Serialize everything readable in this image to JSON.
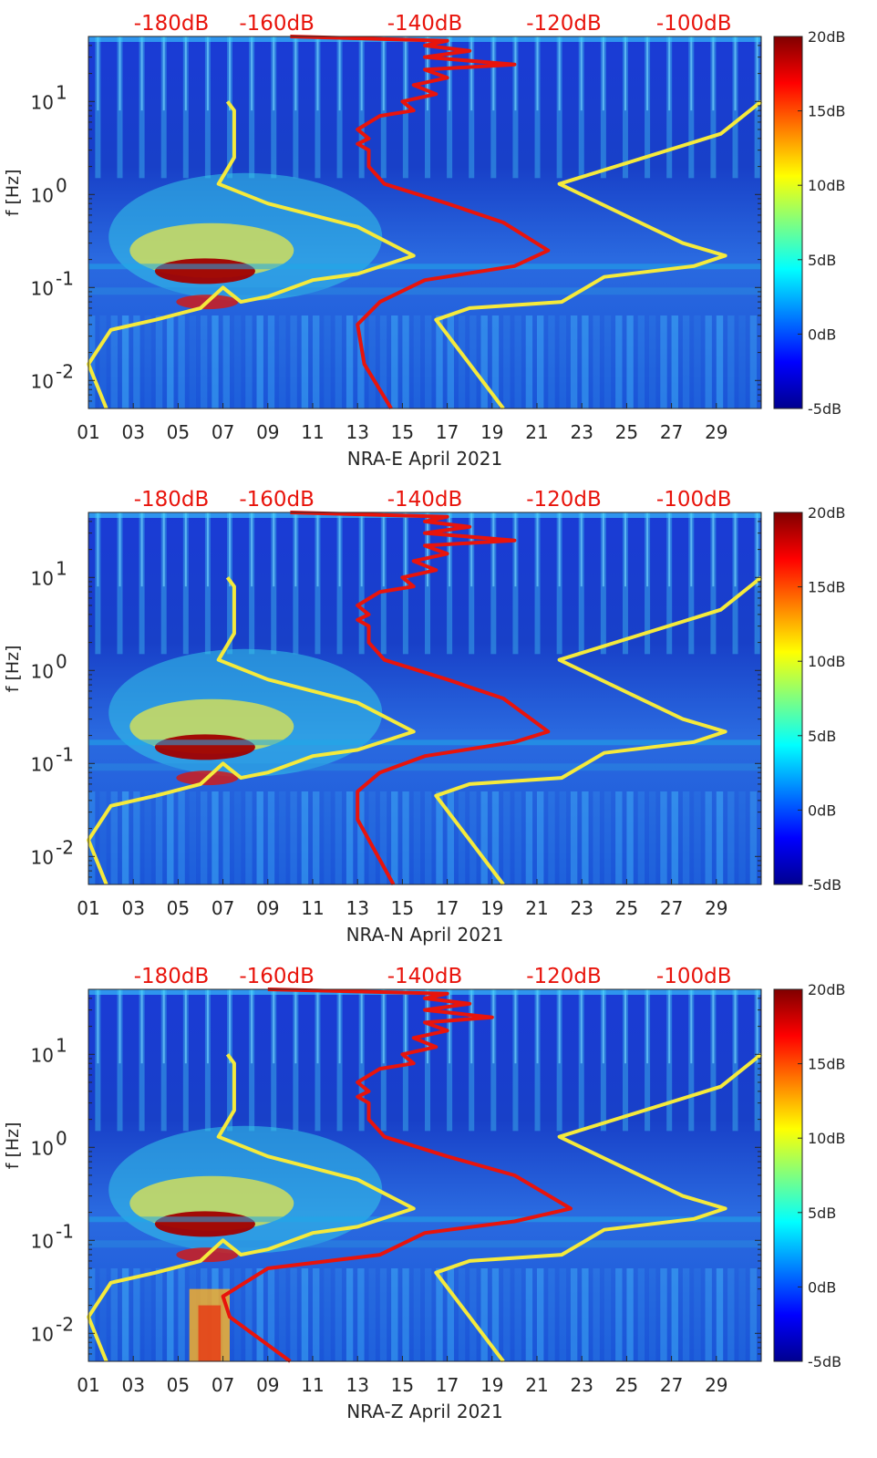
{
  "chart_data": [
    {
      "type": "heatmap",
      "xlabel": "NRA-E April 2021",
      "ylabel": "f [Hz]",
      "x_tick_labels": [
        "01",
        "03",
        "05",
        "07",
        "09",
        "11",
        "13",
        "15",
        "17",
        "19",
        "21",
        "23",
        "25",
        "27",
        "29"
      ],
      "x_ticks": [
        1,
        3,
        5,
        7,
        9,
        11,
        13,
        15,
        17,
        19,
        21,
        23,
        25,
        27,
        29
      ],
      "xlim": [
        1,
        31
      ],
      "y_scale": "log",
      "ylim": [
        0.005,
        50
      ],
      "y_ticks": [
        0.01,
        0.1,
        1,
        10
      ],
      "y_tick_labels": [
        [
          "10",
          "-2"
        ],
        [
          "10",
          "-1"
        ],
        [
          "10",
          "0"
        ],
        [
          "10",
          "1"
        ]
      ],
      "top_axis_labels": [
        "-180dB",
        "-160dB",
        "-140dB",
        "-120dB",
        "-100dB"
      ],
      "top_axis_days": [
        4.7,
        9.4,
        16.0,
        22.2,
        28.0
      ],
      "colorbar": {
        "labels": [
          "20dB",
          "15dB",
          "10dB",
          "5dB",
          "0dB",
          "-5dB"
        ],
        "range": [
          -5,
          20
        ]
      },
      "colors": {
        "model_lines": "#f5ea3c",
        "psd_curve": "#e8140c"
      },
      "series": [],
      "yellow_lines": {
        "left": [
          [
            7.2,
            10
          ],
          [
            7.5,
            8
          ],
          [
            7.5,
            2.5
          ],
          [
            6.8,
            1.3
          ],
          [
            9,
            0.8
          ],
          [
            11,
            0.6
          ],
          [
            13,
            0.45
          ],
          [
            15.5,
            0.22
          ],
          [
            13,
            0.14
          ],
          [
            11,
            0.12
          ],
          [
            9,
            0.08
          ],
          [
            7.8,
            0.07
          ],
          [
            7,
            0.1
          ],
          [
            6,
            0.06
          ],
          [
            4,
            0.045
          ],
          [
            2,
            0.035
          ],
          [
            1,
            0.015
          ],
          [
            1.8,
            0.005
          ]
        ],
        "right": [
          [
            31,
            10
          ],
          [
            29.2,
            4.5
          ],
          [
            22,
            1.3
          ],
          [
            27.5,
            0.3
          ],
          [
            29.4,
            0.22
          ],
          [
            28,
            0.17
          ],
          [
            24,
            0.13
          ],
          [
            22.1,
            0.07
          ],
          [
            18,
            0.06
          ],
          [
            16.5,
            0.045
          ],
          [
            19.5,
            0.005
          ]
        ]
      },
      "red_curve": [
        [
          10,
          50
        ],
        [
          17,
          45
        ],
        [
          16,
          40
        ],
        [
          18,
          35
        ],
        [
          16,
          30
        ],
        [
          20,
          25
        ],
        [
          16,
          22
        ],
        [
          17,
          18
        ],
        [
          15.5,
          15
        ],
        [
          16.5,
          12
        ],
        [
          15,
          10
        ],
        [
          15.5,
          8
        ],
        [
          14,
          7
        ],
        [
          13,
          5
        ],
        [
          13.5,
          4
        ],
        [
          13,
          3.5
        ],
        [
          13.5,
          3
        ],
        [
          13.5,
          2
        ],
        [
          14.2,
          1.3
        ],
        [
          17,
          0.8
        ],
        [
          19.5,
          0.5
        ],
        [
          21.5,
          0.25
        ],
        [
          20,
          0.17
        ],
        [
          16,
          0.12
        ],
        [
          14,
          0.07
        ],
        [
          13,
          0.04
        ],
        [
          13.3,
          0.015
        ],
        [
          14.5,
          0.005
        ]
      ]
    },
    {
      "type": "heatmap",
      "xlabel": "NRA-N April 2021",
      "ylabel": "f [Hz]",
      "x_tick_labels": [
        "01",
        "03",
        "05",
        "07",
        "09",
        "11",
        "13",
        "15",
        "17",
        "19",
        "21",
        "23",
        "25",
        "27",
        "29"
      ],
      "x_ticks": [
        1,
        3,
        5,
        7,
        9,
        11,
        13,
        15,
        17,
        19,
        21,
        23,
        25,
        27,
        29
      ],
      "xlim": [
        1,
        31
      ],
      "y_scale": "log",
      "ylim": [
        0.005,
        50
      ],
      "y_ticks": [
        0.01,
        0.1,
        1,
        10
      ],
      "y_tick_labels": [
        [
          "10",
          "-2"
        ],
        [
          "10",
          "-1"
        ],
        [
          "10",
          "0"
        ],
        [
          "10",
          "1"
        ]
      ],
      "top_axis_labels": [
        "-180dB",
        "-160dB",
        "-140dB",
        "-120dB",
        "-100dB"
      ],
      "top_axis_days": [
        4.7,
        9.4,
        16.0,
        22.2,
        28.0
      ],
      "colorbar": {
        "labels": [
          "20dB",
          "15dB",
          "10dB",
          "5dB",
          "0dB",
          "-5dB"
        ],
        "range": [
          -5,
          20
        ]
      },
      "colors": {
        "model_lines": "#f5ea3c",
        "psd_curve": "#e8140c"
      },
      "series": [],
      "yellow_lines": {
        "left": [
          [
            7.2,
            10
          ],
          [
            7.5,
            8
          ],
          [
            7.5,
            2.5
          ],
          [
            6.8,
            1.3
          ],
          [
            9,
            0.8
          ],
          [
            11,
            0.6
          ],
          [
            13,
            0.45
          ],
          [
            15.5,
            0.22
          ],
          [
            13,
            0.14
          ],
          [
            11,
            0.12
          ],
          [
            9,
            0.08
          ],
          [
            7.8,
            0.07
          ],
          [
            7,
            0.1
          ],
          [
            6,
            0.06
          ],
          [
            4,
            0.045
          ],
          [
            2,
            0.035
          ],
          [
            1,
            0.015
          ],
          [
            1.8,
            0.005
          ]
        ],
        "right": [
          [
            31,
            10
          ],
          [
            29.2,
            4.5
          ],
          [
            22,
            1.3
          ],
          [
            27.5,
            0.3
          ],
          [
            29.4,
            0.22
          ],
          [
            28,
            0.17
          ],
          [
            24,
            0.13
          ],
          [
            22.1,
            0.07
          ],
          [
            18,
            0.06
          ],
          [
            16.5,
            0.045
          ],
          [
            19.5,
            0.005
          ]
        ]
      },
      "red_curve": [
        [
          10,
          50
        ],
        [
          17,
          45
        ],
        [
          16,
          40
        ],
        [
          18,
          35
        ],
        [
          16,
          30
        ],
        [
          20,
          25
        ],
        [
          16,
          22
        ],
        [
          17,
          18
        ],
        [
          15.5,
          15
        ],
        [
          16.5,
          12
        ],
        [
          15,
          10
        ],
        [
          15.5,
          8
        ],
        [
          14,
          7
        ],
        [
          13,
          5
        ],
        [
          13.5,
          4
        ],
        [
          13,
          3.5
        ],
        [
          13.5,
          3
        ],
        [
          13.5,
          2
        ],
        [
          14.2,
          1.3
        ],
        [
          17,
          0.8
        ],
        [
          19.5,
          0.5
        ],
        [
          21.5,
          0.22
        ],
        [
          20,
          0.17
        ],
        [
          16,
          0.12
        ],
        [
          14,
          0.08
        ],
        [
          13,
          0.05
        ],
        [
          13,
          0.025
        ],
        [
          14.6,
          0.005
        ]
      ]
    },
    {
      "type": "heatmap",
      "xlabel": "NRA-Z April 2021",
      "ylabel": "f [Hz]",
      "x_tick_labels": [
        "01",
        "03",
        "05",
        "07",
        "09",
        "11",
        "13",
        "15",
        "17",
        "19",
        "21",
        "23",
        "25",
        "27",
        "29"
      ],
      "x_ticks": [
        1,
        3,
        5,
        7,
        9,
        11,
        13,
        15,
        17,
        19,
        21,
        23,
        25,
        27,
        29
      ],
      "xlim": [
        1,
        31
      ],
      "y_scale": "log",
      "ylim": [
        0.005,
        50
      ],
      "y_ticks": [
        0.01,
        0.1,
        1,
        10
      ],
      "y_tick_labels": [
        [
          "10",
          "-2"
        ],
        [
          "10",
          "-1"
        ],
        [
          "10",
          "0"
        ],
        [
          "10",
          "1"
        ]
      ],
      "top_axis_labels": [
        "-180dB",
        "-160dB",
        "-140dB",
        "-120dB",
        "-100dB"
      ],
      "top_axis_days": [
        4.7,
        9.4,
        16.0,
        22.2,
        28.0
      ],
      "colorbar": {
        "labels": [
          "20dB",
          "15dB",
          "10dB",
          "5dB",
          "0dB",
          "-5dB"
        ],
        "range": [
          -5,
          20
        ]
      },
      "colors": {
        "model_lines": "#f5ea3c",
        "psd_curve": "#e8140c"
      },
      "series": [],
      "yellow_lines": {
        "left": [
          [
            7.2,
            10
          ],
          [
            7.5,
            8
          ],
          [
            7.5,
            2.5
          ],
          [
            6.8,
            1.3
          ],
          [
            9,
            0.8
          ],
          [
            11,
            0.6
          ],
          [
            13,
            0.45
          ],
          [
            15.5,
            0.22
          ],
          [
            13,
            0.14
          ],
          [
            11,
            0.12
          ],
          [
            9,
            0.08
          ],
          [
            7.8,
            0.07
          ],
          [
            7,
            0.1
          ],
          [
            6,
            0.06
          ],
          [
            4,
            0.045
          ],
          [
            2,
            0.035
          ],
          [
            1,
            0.015
          ],
          [
            1.8,
            0.005
          ]
        ],
        "right": [
          [
            31,
            10
          ],
          [
            29.2,
            4.5
          ],
          [
            22,
            1.3
          ],
          [
            27.5,
            0.3
          ],
          [
            29.4,
            0.22
          ],
          [
            28,
            0.17
          ],
          [
            24,
            0.13
          ],
          [
            22.1,
            0.07
          ],
          [
            18,
            0.06
          ],
          [
            16.5,
            0.045
          ],
          [
            19.5,
            0.005
          ]
        ]
      },
      "red_curve": [
        [
          9,
          50
        ],
        [
          17,
          45
        ],
        [
          16,
          40
        ],
        [
          18,
          35
        ],
        [
          16,
          30
        ],
        [
          19,
          25
        ],
        [
          16,
          22
        ],
        [
          17,
          18
        ],
        [
          15.5,
          15
        ],
        [
          16.5,
          12
        ],
        [
          15,
          10
        ],
        [
          15.5,
          8
        ],
        [
          14,
          7
        ],
        [
          13,
          5
        ],
        [
          13.5,
          4
        ],
        [
          13,
          3.5
        ],
        [
          13.5,
          3
        ],
        [
          13.5,
          2
        ],
        [
          14.2,
          1.3
        ],
        [
          17,
          0.8
        ],
        [
          20,
          0.5
        ],
        [
          22.5,
          0.22
        ],
        [
          20,
          0.16
        ],
        [
          16,
          0.12
        ],
        [
          14,
          0.07
        ],
        [
          9,
          0.05
        ],
        [
          7,
          0.025
        ],
        [
          7.3,
          0.015
        ],
        [
          10,
          0.005
        ]
      ]
    }
  ]
}
